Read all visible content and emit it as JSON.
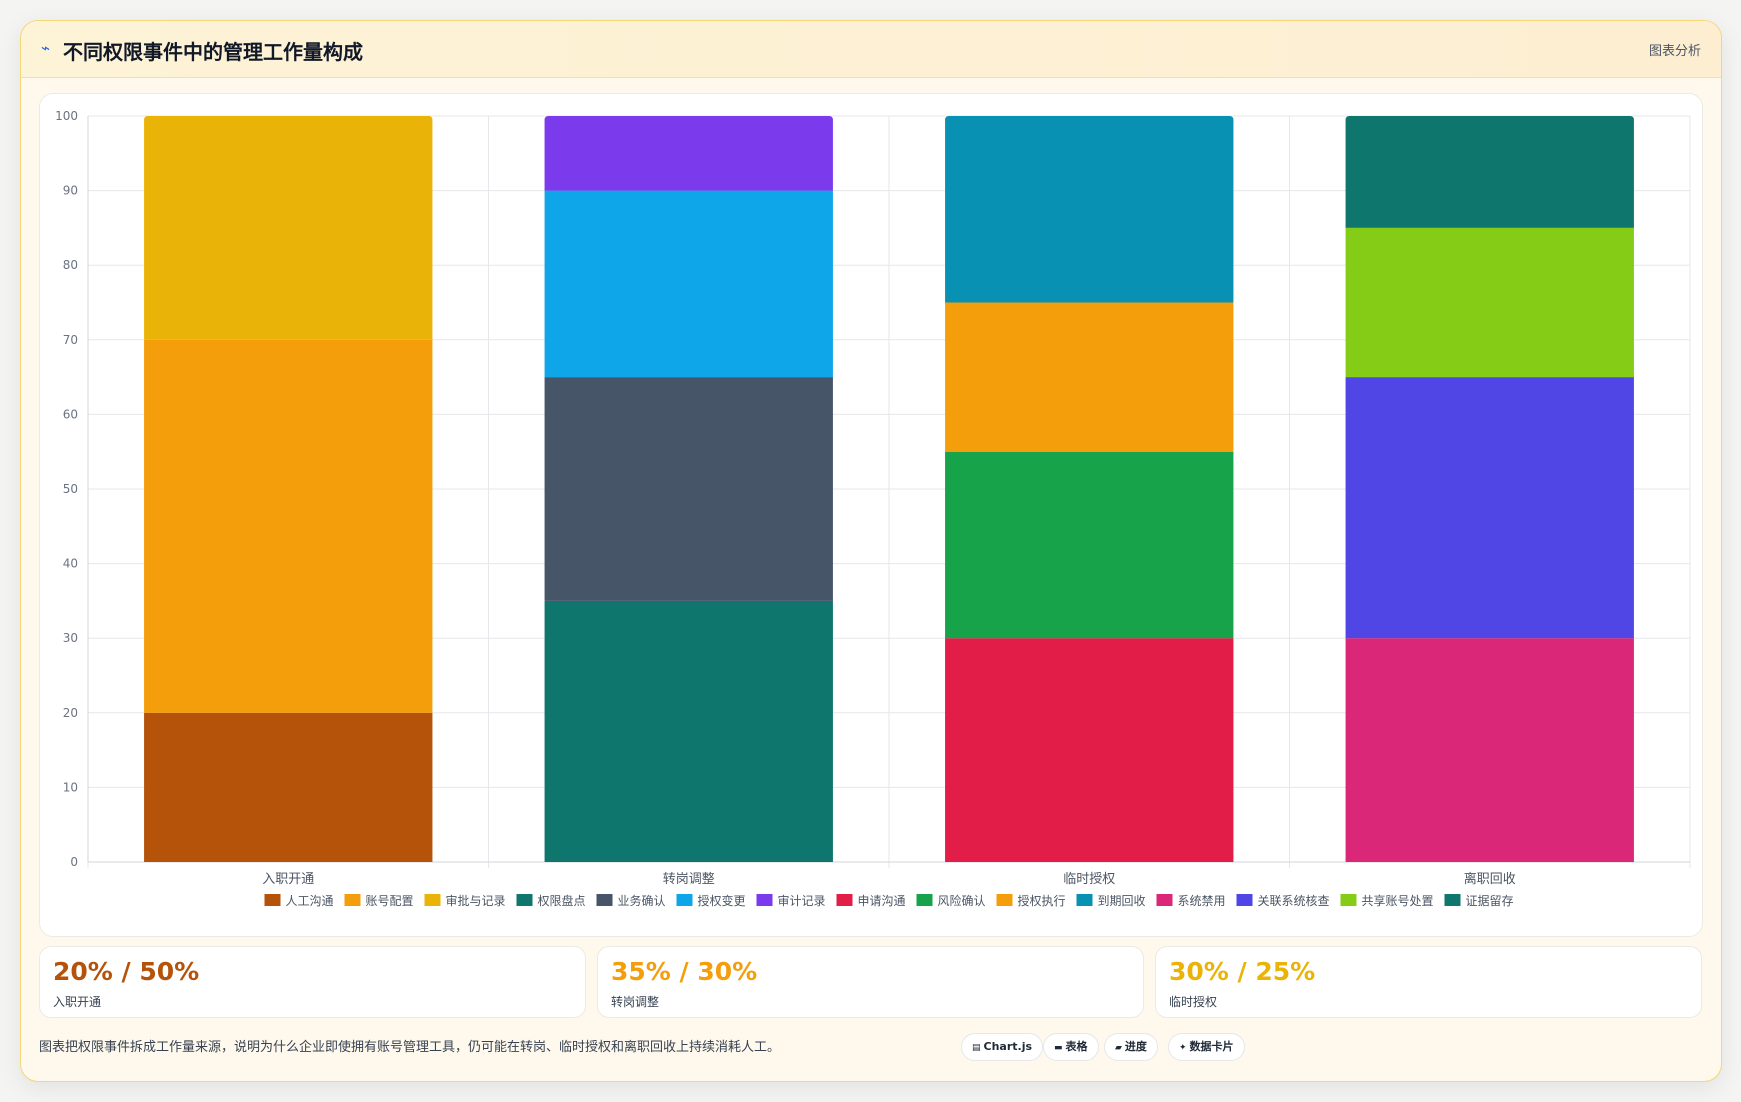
{
  "header": {
    "icon": "chart-line-icon",
    "title": "不同权限事件中的管理工作量构成",
    "right_label": "图表分析"
  },
  "chart_data": {
    "type": "bar",
    "stacked": true,
    "categories": [
      "入职开通",
      "转岗调整",
      "临时授权",
      "离职回收"
    ],
    "ylim": [
      0,
      100
    ],
    "yticks": [
      0,
      10,
      20,
      30,
      40,
      50,
      60,
      70,
      80,
      90,
      100
    ],
    "grid": true,
    "legend_position": "bottom",
    "series": [
      {
        "name": "人工沟通",
        "color": "#b45309",
        "values": [
          20,
          0,
          0,
          0
        ]
      },
      {
        "name": "账号配置",
        "color": "#f59e0b",
        "values": [
          50,
          0,
          0,
          0
        ]
      },
      {
        "name": "审批与记录",
        "color": "#eab308",
        "values": [
          30,
          0,
          0,
          0
        ]
      },
      {
        "name": "权限盘点",
        "color": "#0f766e",
        "values": [
          0,
          35,
          0,
          0
        ]
      },
      {
        "name": "业务确认",
        "color": "#475569",
        "values": [
          0,
          30,
          0,
          0
        ]
      },
      {
        "name": "授权变更",
        "color": "#0ea5e9",
        "values": [
          0,
          25,
          0,
          0
        ]
      },
      {
        "name": "审计记录",
        "color": "#7c3aed",
        "values": [
          0,
          10,
          0,
          0
        ]
      },
      {
        "name": "申请沟通",
        "color": "#e11d48",
        "values": [
          0,
          0,
          30,
          0
        ]
      },
      {
        "name": "风险确认",
        "color": "#16a34a",
        "values": [
          0,
          0,
          25,
          0
        ]
      },
      {
        "name": "授权执行",
        "color": "#f59e0b",
        "values": [
          0,
          0,
          20,
          0
        ]
      },
      {
        "name": "到期回收",
        "color": "#0891b2",
        "values": [
          0,
          0,
          25,
          0
        ]
      },
      {
        "name": "系统禁用",
        "color": "#db2777",
        "values": [
          0,
          0,
          0,
          30
        ]
      },
      {
        "name": "关联系统核查",
        "color": "#4f46e5",
        "values": [
          0,
          0,
          0,
          35
        ]
      },
      {
        "name": "共享账号处置",
        "color": "#84cc16",
        "values": [
          0,
          0,
          0,
          20
        ]
      },
      {
        "name": "证据留存",
        "color": "#0f766e",
        "values": [
          0,
          0,
          0,
          15
        ]
      }
    ]
  },
  "stats": [
    {
      "value": "20% / 50%",
      "label": "入职开通",
      "color": "#b45309"
    },
    {
      "value": "35% / 30%",
      "label": "转岗调整",
      "color": "#f59e0b"
    },
    {
      "value": "30% / 25%",
      "label": "临时授权",
      "color": "#eab308"
    }
  ],
  "footer": {
    "note": "图表把权限事件拆成工作量来源，说明为什么企业即使拥有账号管理工具，仍可能在转岗、临时授权和离职回收上持续消耗人工。",
    "chips": [
      {
        "icon": "chart-icon",
        "glyph": "▤",
        "label": "Chart.js"
      },
      {
        "icon": "table-icon",
        "glyph": "▬",
        "label": "表格"
      },
      {
        "icon": "progress-icon",
        "glyph": "▰",
        "label": "进度"
      },
      {
        "icon": "data-card-icon",
        "glyph": "✦",
        "label": "数据卡片"
      }
    ]
  }
}
